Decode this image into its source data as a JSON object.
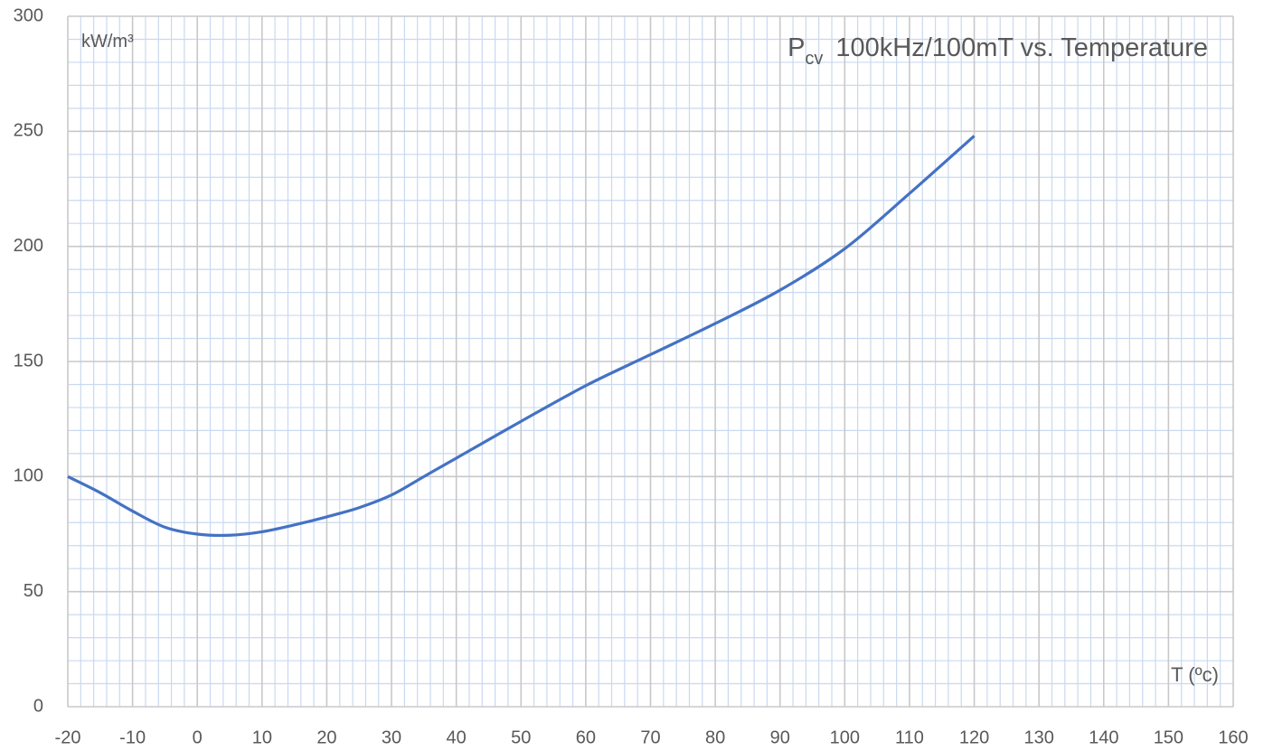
{
  "chart_data": {
    "type": "line",
    "title": {
      "main": "P",
      "sub": "cv",
      "rest": "100kHz/100mT vs. Temperature"
    },
    "y_label": "kW/m³",
    "x_label": "T (ºc)",
    "x": [
      -20,
      -15,
      -10,
      -5,
      0,
      5,
      10,
      15,
      20,
      25,
      30,
      35,
      40,
      50,
      60,
      70,
      80,
      90,
      100,
      110,
      120
    ],
    "series": [
      {
        "name": "Pcv",
        "color": "#4472c4",
        "values": [
          100,
          93,
          85,
          78,
          75,
          74.5,
          76,
          79,
          82.5,
          86.5,
          92,
          100,
          108,
          124,
          139.5,
          153,
          166.5,
          181,
          199,
          223,
          248
        ]
      }
    ],
    "xlim": [
      -20,
      160
    ],
    "xticks": [
      -20,
      -10,
      0,
      10,
      20,
      30,
      40,
      50,
      60,
      70,
      80,
      90,
      100,
      110,
      120,
      130,
      140,
      150,
      160
    ],
    "ylim": [
      0,
      300
    ],
    "yticks": [
      0,
      50,
      100,
      150,
      200,
      250,
      300
    ],
    "grid": true
  }
}
